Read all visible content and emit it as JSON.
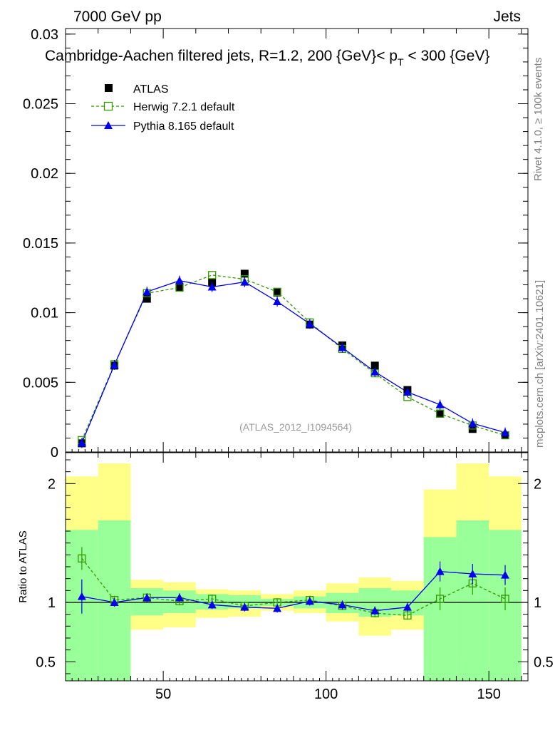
{
  "header": {
    "left": "7000 GeV pp",
    "right": "Jets",
    "title": "Cambridge-Aachen filtered jets, R=1.2, 200 {GeV}< p_T < 300 {GeV}",
    "title_main": "Cambridge-Aachen filtered jets, R=1.2, 200 {GeV}< p",
    "title_sub": "T",
    "title_tail": " < 300 {GeV}"
  },
  "side_text": {
    "rivet": "Rivet 4.1.0, ≥ 100k events",
    "mcplots": "mcplots.cern.ch [arXiv:2401.10621]"
  },
  "watermark": "(ATLAS_2012_I1094564)",
  "legend": [
    "ATLAS",
    "Herwig 7.2.1 default",
    "Pythia 8.165 default"
  ],
  "colors": {
    "data": "#000000",
    "herwig": "#339900",
    "pythia": "#0000ee",
    "band_outer": "#ffff88",
    "band_inner": "#99ff99"
  },
  "chart_data": [
    {
      "type": "line",
      "panel": "main",
      "xlim": [
        20,
        162
      ],
      "ylim": [
        0,
        0.0304
      ],
      "yticks": [
        0,
        0.005,
        0.01,
        0.015,
        0.02,
        0.025,
        0.03
      ],
      "ytick_labels": [
        "0",
        "0.005",
        "0.01",
        "0.015",
        "0.02",
        "0.025",
        "0.03"
      ],
      "x": [
        25,
        35,
        45,
        55,
        65,
        75,
        85,
        95,
        105,
        115,
        125,
        135,
        145,
        155
      ],
      "series": [
        {
          "name": "ATLAS",
          "marker": "square",
          "values": [
            0.00062,
            0.0062,
            0.011,
            0.0118,
            0.01215,
            0.0128,
            0.01145,
            0.00915,
            0.00765,
            0.0062,
            0.00445,
            0.00275,
            0.00165,
            0.0012
          ]
        },
        {
          "name": "Herwig 7.2.1 default",
          "marker": "open-square",
          "style": "dashed",
          "values": [
            0.00085,
            0.0063,
            0.0114,
            0.0118,
            0.0127,
            0.0124,
            0.0115,
            0.0093,
            0.0074,
            0.00565,
            0.00395,
            0.00275,
            0.0019,
            0.0012
          ]
        },
        {
          "name": "Pythia 8.165 default",
          "marker": "triangle",
          "style": "solid",
          "values": [
            0.00065,
            0.00625,
            0.0115,
            0.0123,
            0.01185,
            0.0122,
            0.0108,
            0.0092,
            0.0075,
            0.00575,
            0.0043,
            0.0034,
            0.00205,
            0.0014
          ]
        }
      ]
    },
    {
      "type": "line",
      "panel": "ratio",
      "ylabel": "Ratio to ATLAS",
      "xlim": [
        20,
        162
      ],
      "ylim": [
        0.34,
        2.26
      ],
      "yticks": [
        0.5,
        1,
        2
      ],
      "ytick_labels": [
        "0.5",
        "1",
        "2"
      ],
      "xticks": [
        50,
        100,
        150
      ],
      "xtick_labels": [
        "50",
        "100",
        "150"
      ],
      "x": [
        25,
        35,
        45,
        55,
        65,
        75,
        85,
        95,
        105,
        115,
        125,
        135,
        145,
        155
      ],
      "bins": [
        [
          20,
          30
        ],
        [
          30,
          40
        ],
        [
          40,
          50
        ],
        [
          50,
          60
        ],
        [
          60,
          70
        ],
        [
          70,
          80
        ],
        [
          80,
          90
        ],
        [
          90,
          100
        ],
        [
          100,
          110
        ],
        [
          110,
          120
        ],
        [
          120,
          130
        ],
        [
          130,
          140
        ],
        [
          140,
          150
        ],
        [
          150,
          160
        ]
      ],
      "band_outer": [
        [
          0.46,
          2.06
        ],
        [
          0.0,
          2.17
        ],
        [
          0.77,
          1.19
        ],
        [
          0.79,
          1.17
        ],
        [
          0.87,
          1.11
        ],
        [
          0.88,
          1.1
        ],
        [
          0.93,
          1.07
        ],
        [
          0.91,
          1.1
        ],
        [
          0.84,
          1.16
        ],
        [
          0.72,
          1.21
        ],
        [
          0.77,
          1.18
        ],
        [
          0.54,
          1.95
        ],
        [
          0.0,
          2.17
        ],
        [
          0.46,
          2.06
        ]
      ],
      "band_inner": [
        [
          0.0,
          1.61
        ],
        [
          0.0,
          1.69
        ],
        [
          0.89,
          1.12
        ],
        [
          0.91,
          1.1
        ],
        [
          0.94,
          1.07
        ],
        [
          0.95,
          1.06
        ],
        [
          0.97,
          1.03
        ],
        [
          0.95,
          1.05
        ],
        [
          0.91,
          1.08
        ],
        [
          0.88,
          1.12
        ],
        [
          0.89,
          1.1
        ],
        [
          0.0,
          1.55
        ],
        [
          0.0,
          1.69
        ],
        [
          0.0,
          1.61
        ]
      ],
      "series": [
        {
          "name": "Herwig 7.2.1 default",
          "values": [
            1.37,
            1.02,
            1.04,
            1.01,
            1.03,
            0.97,
            1.0,
            1.02,
            0.97,
            0.91,
            0.89,
            1.03,
            1.16,
            1.03
          ]
        },
        {
          "name": "Pythia 8.165 default",
          "values": [
            1.05,
            1.0,
            1.04,
            1.04,
            0.98,
            0.96,
            0.95,
            1.01,
            0.98,
            0.93,
            0.96,
            1.26,
            1.24,
            1.23
          ]
        }
      ]
    }
  ]
}
